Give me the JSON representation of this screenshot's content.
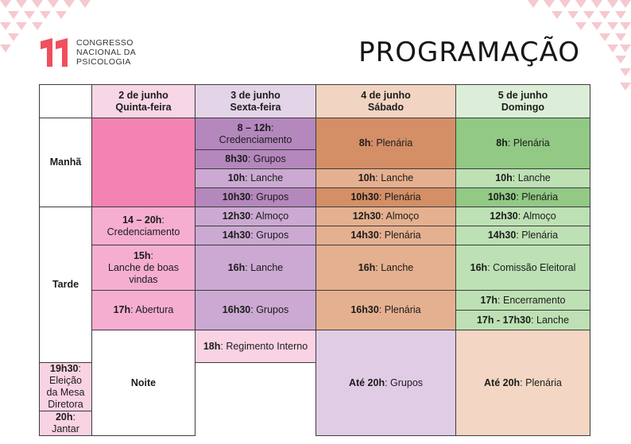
{
  "logo": {
    "mark": "11",
    "line1": "CONGRESSO",
    "line2": "NACIONAL DA",
    "line3": "PSICOLOGIA",
    "color": "#ef4f5e"
  },
  "title": "PROGRAMAÇÃO",
  "days": [
    {
      "date": "2 de junho",
      "weekday": "Quinta-feira"
    },
    {
      "date": "3 de junho",
      "weekday": "Sexta-feira"
    },
    {
      "date": "4 de junho",
      "weekday": "Sábado"
    },
    {
      "date": "5 de junho",
      "weekday": "Domingo"
    }
  ],
  "periods": {
    "morning": "Manhã",
    "afternoon": "Tarde",
    "night": "Noite"
  },
  "schedule": {
    "d2_credenciamento": {
      "time": "8 – 12h",
      "text": "Credenciamento"
    },
    "d2_grupos_m": {
      "time": "8h30",
      "text": "Grupos"
    },
    "d2_lanche_m": {
      "time": "10h",
      "text": "Lanche"
    },
    "d2_grupos_m2": {
      "time": "10h30",
      "text": "Grupos"
    },
    "d3_plenaria_m": {
      "time": "8h",
      "text": "Plenária"
    },
    "d3_lanche_m": {
      "time": "10h",
      "text": "Lanche"
    },
    "d3_plenaria_m2": {
      "time": "10h30",
      "text": "Plenária"
    },
    "d4_plenaria_m": {
      "time": "8h",
      "text": "Plenária"
    },
    "d4_lanche_m": {
      "time": "10h",
      "text": "Lanche"
    },
    "d4_plenaria_m2": {
      "time": "10h30",
      "text": "Plenária"
    },
    "d1_credenciamento": {
      "time": "14 – 20h",
      "text": "Credenciamento"
    },
    "d1_lanche": {
      "time": "15h",
      "text": "Lanche de boas vindas"
    },
    "d1_abertura": {
      "time": "17h",
      "text": "Abertura"
    },
    "d2_almoco": {
      "time": "12h30",
      "text": "Almoço"
    },
    "d2_grupos_t": {
      "time": "14h30",
      "text": "Grupos"
    },
    "d2_lanche_t": {
      "time": "16h",
      "text": "Lanche"
    },
    "d2_grupos_t2": {
      "time": "16h30",
      "text": "Grupos"
    },
    "d3_almoco": {
      "time": "12h30",
      "text": "Almoço"
    },
    "d3_plenaria_t": {
      "time": "14h30",
      "text": "Plenária"
    },
    "d3_lanche_t": {
      "time": "16h",
      "text": "Lanche"
    },
    "d3_plenaria_t2": {
      "time": "16h30",
      "text": "Plenária"
    },
    "d4_almoco": {
      "time": "12h30",
      "text": "Almoço"
    },
    "d4_plenaria_t": {
      "time": "14h30",
      "text": "Plenária"
    },
    "d4_comissao": {
      "time": "16h",
      "text": "Comissão Eleitoral"
    },
    "d4_encerramento": {
      "time": "17h",
      "text": "Encerramento"
    },
    "d4_lanche_t": {
      "time": "17h - 17h30",
      "text": "Lanche"
    },
    "d1_regimento": {
      "time": "18h",
      "text": "Regimento Interno"
    },
    "d1_eleicao": {
      "time": "19h30",
      "text": "Eleição da Mesa Diretora"
    },
    "d1_jantar": {
      "time": "20h",
      "text": "Jantar"
    },
    "d2_grupos_n": {
      "time": "Até 20h",
      "text": "Grupos"
    },
    "d3_plenaria_n": {
      "time": "Até 20h",
      "text": "Plenária"
    }
  }
}
